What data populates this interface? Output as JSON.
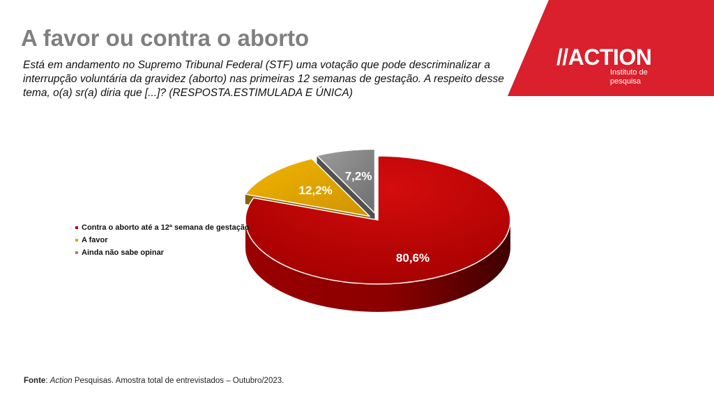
{
  "header": {
    "title": "A favor ou contra o aborto",
    "question": "Está em andamento no Supremo Tribunal Federal (STF) uma votação que pode descriminalizar a interrupção voluntária da gravidez (aborto) nas primeiras 12 semanas de gestação. A respeito desse tema, o(a) sr(a) diria que [...]? (RESPOSTA.ESTIMULADA E ÚNICA)"
  },
  "brand": {
    "logo_text": "//ACTION",
    "subtitle": "Instituto de pesquisa",
    "color": "#d9202c"
  },
  "footer": {
    "source_label": "Fonte",
    "source_brand": "Action",
    "source_text": " Pesquisas. Amostra total de entrevistados – Outubro/2023."
  },
  "chart_data": {
    "type": "pie",
    "title": "",
    "legend_position": "left",
    "slices": [
      {
        "label": "Contra o aborto até a 12ª semana de gestação",
        "value": 80.6,
        "display": "80,6%",
        "color": "#b20000"
      },
      {
        "label": "A favor",
        "value": 12.2,
        "display": "12,2%",
        "color": "#e3a500"
      },
      {
        "label": "Ainda não sabe opinar",
        "value": 7.2,
        "display": "7,2%",
        "color": "#8c8c8c"
      }
    ]
  }
}
